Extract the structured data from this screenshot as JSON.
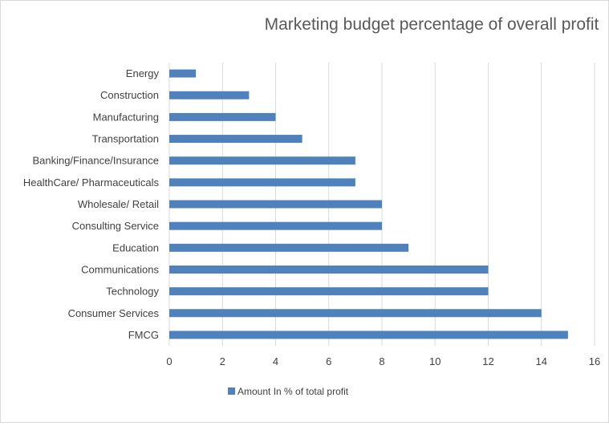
{
  "chart_data": {
    "type": "bar",
    "orientation": "horizontal",
    "title": "Marketing budget percentage of overall profit",
    "categories": [
      "Energy",
      "Construction",
      "Manufacturing",
      "Transportation",
      "Banking/Finance/Insurance",
      "HealthCare/ Pharmaceuticals",
      "Wholesale/ Retail",
      "Consulting Service",
      "Education",
      "Communications",
      "Technology",
      "Consumer Services",
      "FMCG"
    ],
    "series": [
      {
        "name": "Amount In % of total profit",
        "values": [
          1,
          3,
          4,
          5,
          7,
          7,
          8,
          8,
          9,
          12,
          12,
          14,
          15
        ]
      }
    ],
    "x_ticks": [
      "0",
      "2",
      "4",
      "6",
      "8",
      "10",
      "12",
      "14",
      "16"
    ],
    "xlim": [
      0,
      16
    ],
    "grid": "vertical",
    "legend_position": "bottom",
    "colors": {
      "bar": "#4f81bd",
      "grid": "#d9d9d9",
      "text": "#404040",
      "title": "#595959"
    }
  }
}
